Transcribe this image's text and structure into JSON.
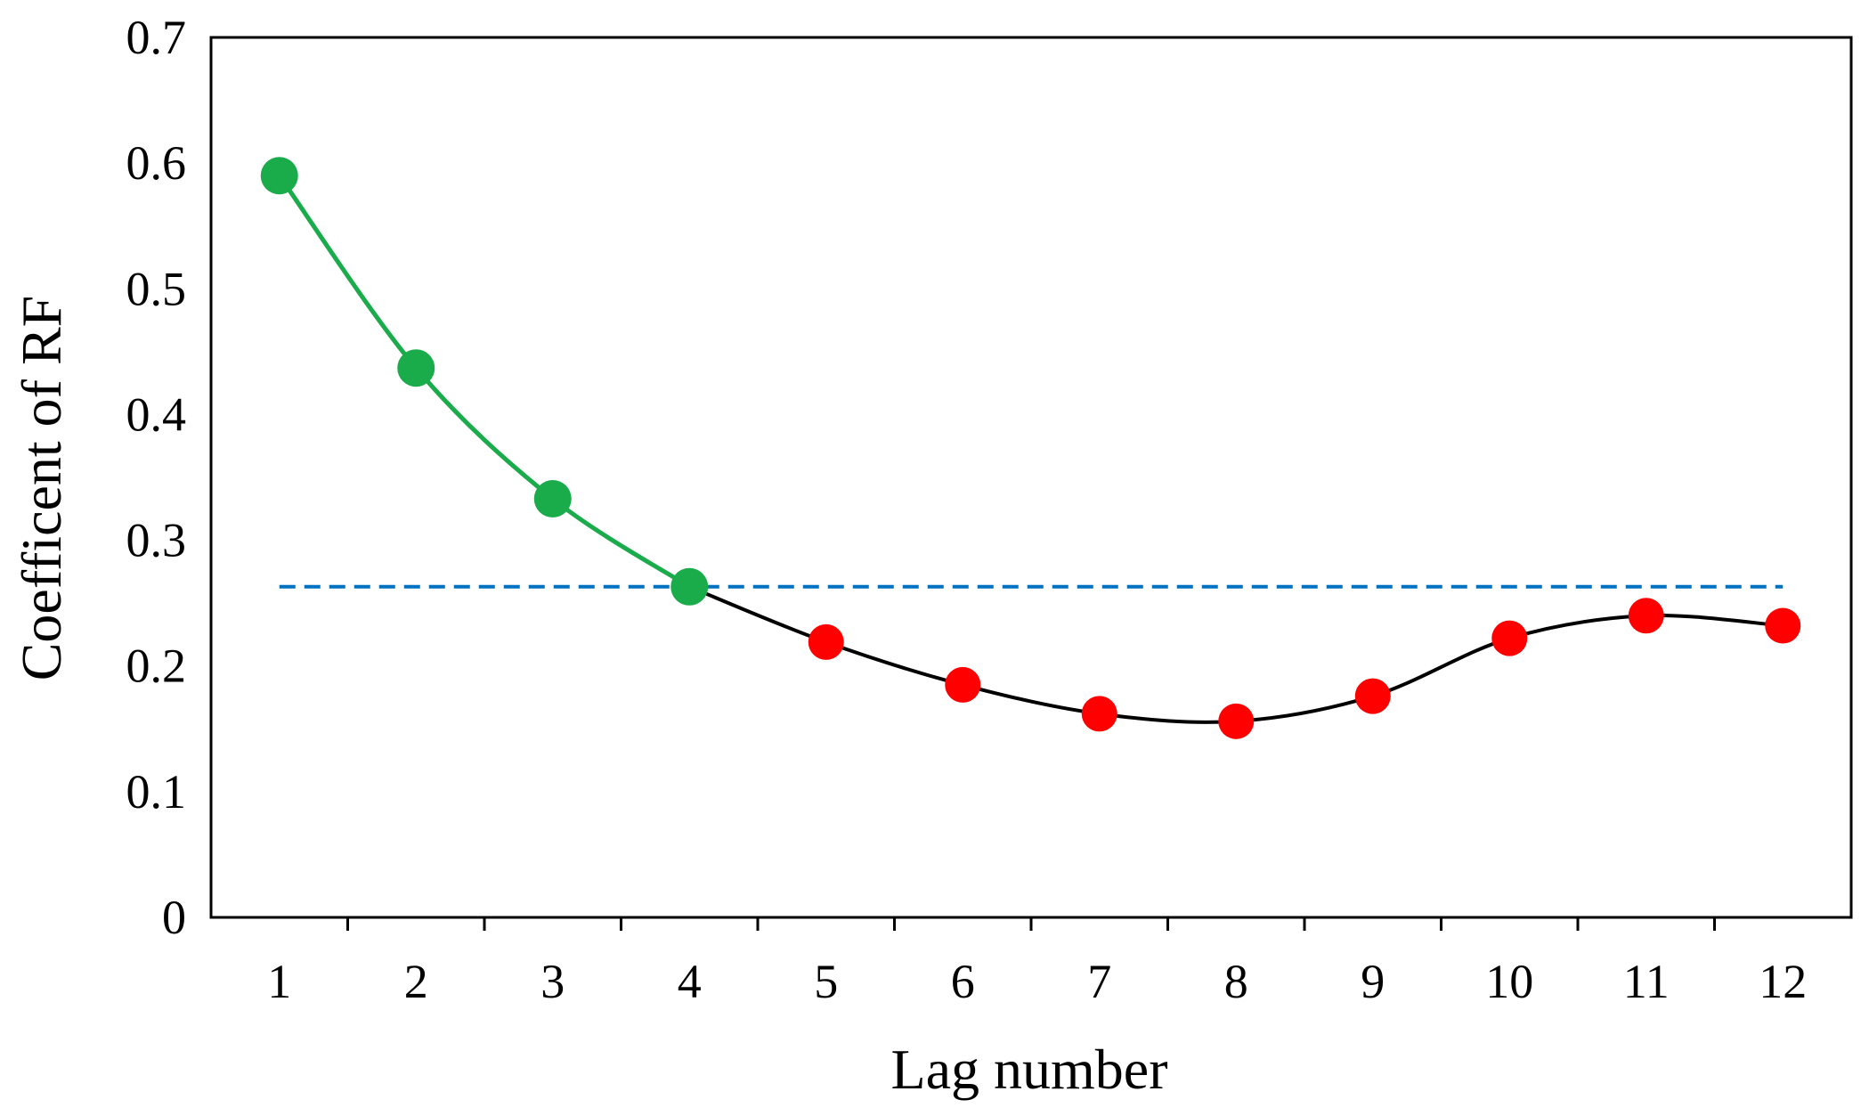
{
  "chart_data": {
    "type": "line",
    "xlabel": "Lag number",
    "ylabel": "Coefficent of RF",
    "categories": [
      "1",
      "2",
      "3",
      "4",
      "5",
      "6",
      "7",
      "8",
      "9",
      "10",
      "11",
      "12"
    ],
    "ylim": [
      0,
      0.7
    ],
    "yticks": [
      "0",
      "0.1",
      "0.2",
      "0.3",
      "0.4",
      "0.5",
      "0.6",
      "0.7"
    ],
    "values": [
      0.59,
      0.437,
      0.333,
      0.263,
      0.219,
      0.185,
      0.162,
      0.156,
      0.176,
      0.222,
      0.24,
      0.232
    ],
    "highlight_count": 4,
    "threshold": 0.263,
    "grid": false,
    "legend": "none",
    "colors": {
      "highlight": "#1aab4b",
      "other_marker": "#ff0000",
      "other_line": "#000000",
      "threshold": "#0070c0",
      "axis": "#000000"
    }
  }
}
